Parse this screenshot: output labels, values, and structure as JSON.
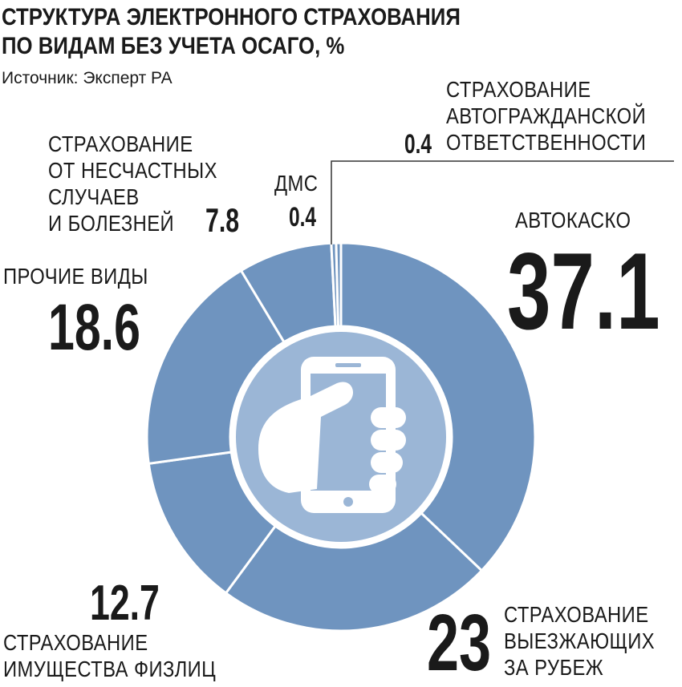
{
  "chart_data": {
    "type": "donut",
    "title": "СТРУКТУРА ЭЛЕКТРОННОГО СТРАХОВАНИЯ\nПО ВИДАМ БЕЗ УЧЕТА ОСАГО, %",
    "source": "Источник: Эксперт РА",
    "categories": [
      "АВТОКАСКО",
      "СТРАХОВАНИЕ\nВЫЕЗЖАЮЩИХ\nЗА РУБЕЖ",
      "СТРАХОВАНИЕ\nИМУЩЕСТВА ФИЗЛИЦ",
      "ПРОЧИЕ ВИДЫ",
      "СТРАХОВАНИЕ\nОТ НЕСЧАСТНЫХ\nСЛУЧАЕВ\nИ БОЛЕЗНЕЙ",
      "ДМС",
      "СТРАХОВАНИЕ\nАВТОГРАЖДАНСКОЙ\nОТВЕТСТВЕННОСТИ"
    ],
    "values": [
      37.1,
      23,
      12.7,
      18.6,
      7.8,
      0.4,
      0.4
    ],
    "color": "#6f94bf"
  }
}
